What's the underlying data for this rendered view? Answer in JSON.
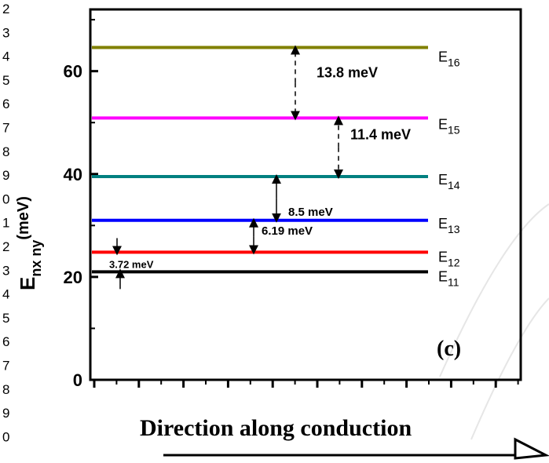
{
  "line_numbers": [
    "2",
    "3",
    "4",
    "5",
    "6",
    "7",
    "8",
    "9",
    "0",
    "1",
    "2",
    "3",
    "4",
    "5",
    "6",
    "7",
    "8",
    "9",
    "0"
  ],
  "chart_data": {
    "type": "line",
    "ylabel_main": "E",
    "ylabel_sub": "nx ny",
    "ylabel_sup": "(meV)",
    "xlabel": "Direction along conduction",
    "panel_label": "(c)",
    "ylim": [
      0,
      72
    ],
    "y_ticks": [
      0,
      20,
      40,
      60
    ],
    "grid": false,
    "levels": [
      {
        "label": "E",
        "sub": "11",
        "energy": 21.0,
        "color": "#000000"
      },
      {
        "label": "E",
        "sub": "12",
        "energy": 24.8,
        "color": "#ff0000"
      },
      {
        "label": "E",
        "sub": "13",
        "energy": 31.0,
        "color": "#0000ff"
      },
      {
        "label": "E",
        "sub": "14",
        "energy": 39.5,
        "color": "#008080"
      },
      {
        "label": "E",
        "sub": "15",
        "energy": 50.9,
        "color": "#ff00ff"
      },
      {
        "label": "E",
        "sub": "16",
        "energy": 64.6,
        "color": "#808000"
      }
    ],
    "spacings": [
      {
        "text": "3.72 meV",
        "from": 0,
        "to": 1
      },
      {
        "text": "6.19 meV",
        "from": 1,
        "to": 2
      },
      {
        "text": "8.5 meV",
        "from": 2,
        "to": 3
      },
      {
        "text": "11.4 meV",
        "from": 3,
        "to": 4
      },
      {
        "text": "13.8 meV",
        "from": 4,
        "to": 5
      }
    ]
  }
}
